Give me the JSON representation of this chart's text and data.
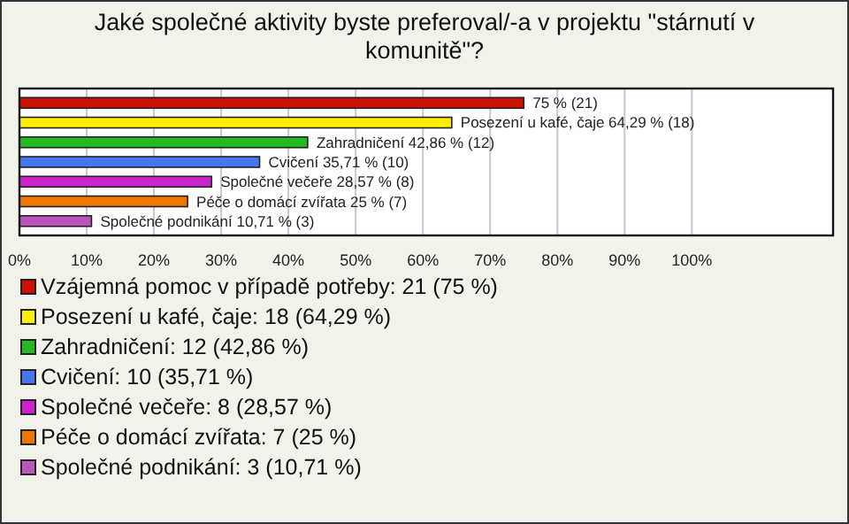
{
  "chart_data": {
    "type": "bar",
    "orientation": "horizontal",
    "title": "Jaké společné aktivity byste preferoval/-a v projektu \"stárnutí v komunitě\"?",
    "categories": [
      null,
      null,
      null,
      null,
      null,
      null,
      null
    ],
    "series": [
      {
        "name": "Vzájemná pomoc v případě potřeby: 21 (75 %)",
        "color": "#cc1100",
        "values": [
          75,
          null,
          null,
          null,
          null,
          null,
          null
        ],
        "value_labels": [
          "75 % (21)",
          null,
          null,
          null,
          null,
          null,
          null
        ]
      },
      {
        "name": "Posezení u kafé, čaje: 18 (64,29 %)",
        "color": "#ffee00",
        "values": [
          null,
          64.29,
          null,
          null,
          null,
          null,
          null
        ],
        "value_labels": [
          null,
          "Posezení u kafé, čaje 64,29 % (18)",
          null,
          null,
          null,
          null,
          null
        ]
      },
      {
        "name": "Zahradničení: 12 (42,86 %)",
        "color": "#22bb22",
        "values": [
          null,
          null,
          42.86,
          null,
          null,
          null,
          null
        ],
        "value_labels": [
          null,
          null,
          "Zahradničení 42,86 % (12)",
          null,
          null,
          null,
          null
        ]
      },
      {
        "name": "Cvičení: 10 (35,71 %)",
        "color": "#4477ee",
        "values": [
          null,
          null,
          null,
          35.71,
          null,
          null,
          null
        ],
        "value_labels": [
          null,
          null,
          null,
          "Cvičení 35,71 % (10)",
          null,
          null,
          null
        ]
      },
      {
        "name": "Společné večeře: 8 (28,57 %)",
        "color": "#cc22cc",
        "values": [
          null,
          null,
          null,
          null,
          28.57,
          null,
          null
        ],
        "value_labels": [
          null,
          null,
          null,
          null,
          "Společné večeře 28,57 % (8)",
          null,
          null
        ]
      },
      {
        "name": "Péče o domácí zvířata: 7 (25 %)",
        "color": "#ee7700",
        "values": [
          null,
          null,
          null,
          null,
          null,
          25,
          null
        ],
        "value_labels": [
          null,
          null,
          null,
          null,
          null,
          "Péče o domácí zvířata 25 % (7)",
          null
        ]
      },
      {
        "name": "Společné podnikání: 3 (10,71 %)",
        "color": "#bb55bb",
        "values": [
          null,
          null,
          null,
          null,
          null,
          null,
          10.71
        ],
        "value_labels": [
          null,
          null,
          null,
          null,
          null,
          null,
          "Společné podnikání 10,71 % (3)"
        ]
      }
    ],
    "xlim": [
      0,
      121
    ],
    "xticks": [
      {
        "value": 0,
        "label": "0%"
      },
      {
        "value": 10,
        "label": "10%"
      },
      {
        "value": 20,
        "label": "20%"
      },
      {
        "value": 30,
        "label": "30%"
      },
      {
        "value": 40,
        "label": "40%"
      },
      {
        "value": 50,
        "label": "50%"
      },
      {
        "value": 60,
        "label": "60%"
      },
      {
        "value": 70,
        "label": "70%"
      },
      {
        "value": 80,
        "label": "80%"
      },
      {
        "value": 90,
        "label": "90%"
      },
      {
        "value": 100,
        "label": "100%"
      }
    ],
    "grid": "x",
    "legend": "bottom"
  }
}
